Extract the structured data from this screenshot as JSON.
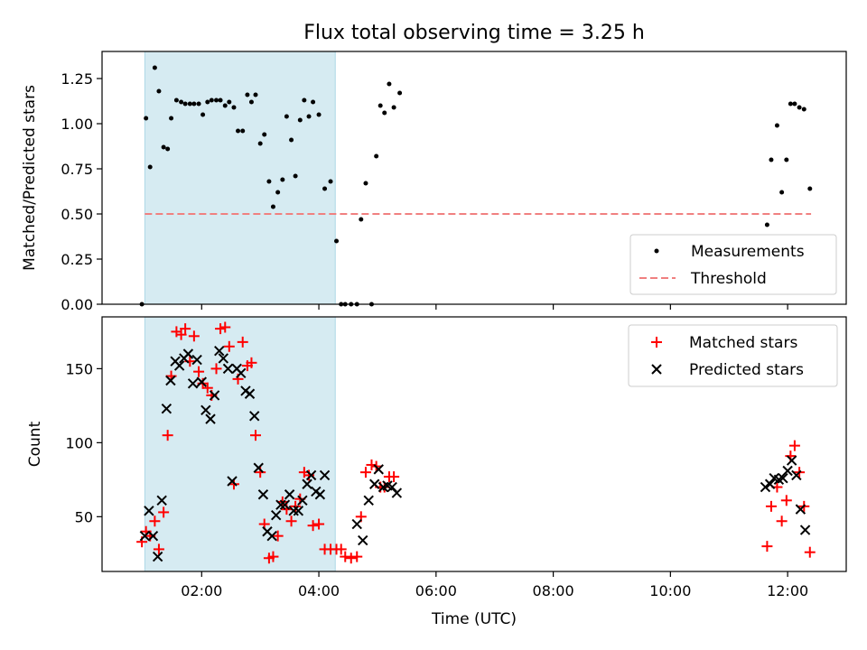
{
  "chart_data": {
    "type": "scatter",
    "title": "Flux total observing time = 3.25 h",
    "xlabel": "Time (UTC)",
    "x_unit": "hours UTC",
    "xlim": [
      0.3,
      13.0
    ],
    "x_ticks": [
      2,
      4,
      6,
      8,
      10,
      12
    ],
    "x_tick_labels": [
      "02:00",
      "04:00",
      "06:00",
      "08:00",
      "10:00",
      "12:00"
    ],
    "highlight_span": {
      "x": [
        1.03,
        4.28
      ],
      "color": "#add8e6"
    },
    "panels": [
      {
        "ylabel": "Matched/Predicted stars",
        "ylim": [
          0,
          1.4
        ],
        "y_ticks": [
          0.0,
          0.25,
          0.5,
          0.75,
          1.0,
          1.25
        ],
        "y_tick_labels": [
          "0.00",
          "0.25",
          "0.50",
          "0.75",
          "1.00",
          "1.25"
        ],
        "legend": "bottom-right",
        "series": [
          {
            "name": "Measurements",
            "marker": "dot",
            "color": "#000000",
            "points": [
              [
                0.98,
                0.0
              ],
              [
                1.05,
                1.03
              ],
              [
                1.12,
                0.76
              ],
              [
                1.2,
                1.31
              ],
              [
                1.27,
                1.18
              ],
              [
                1.35,
                0.87
              ],
              [
                1.42,
                0.86
              ],
              [
                1.48,
                1.03
              ],
              [
                1.57,
                1.13
              ],
              [
                1.65,
                1.12
              ],
              [
                1.72,
                1.11
              ],
              [
                1.8,
                1.11
              ],
              [
                1.87,
                1.11
              ],
              [
                1.95,
                1.11
              ],
              [
                2.02,
                1.05
              ],
              [
                2.1,
                1.12
              ],
              [
                2.17,
                1.13
              ],
              [
                2.25,
                1.13
              ],
              [
                2.32,
                1.13
              ],
              [
                2.4,
                1.1
              ],
              [
                2.47,
                1.12
              ],
              [
                2.55,
                1.09
              ],
              [
                2.62,
                0.96
              ],
              [
                2.7,
                0.96
              ],
              [
                2.78,
                1.16
              ],
              [
                2.85,
                1.12
              ],
              [
                2.92,
                1.16
              ],
              [
                3.0,
                0.89
              ],
              [
                3.07,
                0.94
              ],
              [
                3.15,
                0.68
              ],
              [
                3.22,
                0.54
              ],
              [
                3.3,
                0.62
              ],
              [
                3.38,
                0.69
              ],
              [
                3.45,
                1.04
              ],
              [
                3.53,
                0.91
              ],
              [
                3.6,
                0.71
              ],
              [
                3.68,
                1.02
              ],
              [
                3.75,
                1.13
              ],
              [
                3.83,
                1.04
              ],
              [
                3.9,
                1.12
              ],
              [
                4.0,
                1.05
              ],
              [
                4.1,
                0.64
              ],
              [
                4.2,
                0.68
              ],
              [
                4.3,
                0.35
              ],
              [
                4.38,
                0.0
              ],
              [
                4.45,
                0.0
              ],
              [
                4.55,
                0.0
              ],
              [
                4.65,
                0.0
              ],
              [
                4.72,
                0.47
              ],
              [
                4.8,
                0.67
              ],
              [
                4.9,
                0.0
              ],
              [
                4.98,
                0.82
              ],
              [
                5.05,
                1.1
              ],
              [
                5.12,
                1.06
              ],
              [
                5.2,
                1.22
              ],
              [
                5.28,
                1.09
              ],
              [
                5.38,
                1.17
              ],
              [
                11.65,
                0.44
              ],
              [
                11.72,
                0.8
              ],
              [
                11.82,
                0.99
              ],
              [
                11.9,
                0.62
              ],
              [
                11.98,
                0.8
              ],
              [
                12.05,
                1.11
              ],
              [
                12.12,
                1.11
              ],
              [
                12.2,
                1.09
              ],
              [
                12.28,
                1.08
              ],
              [
                12.38,
                0.64
              ]
            ]
          },
          {
            "name": "Threshold",
            "line": "dashed",
            "color": "#f08080",
            "points": [
              [
                1.03,
                0.5
              ],
              [
                12.4,
                0.5
              ]
            ]
          }
        ]
      },
      {
        "ylabel": "Count",
        "ylim": [
          13,
          185
        ],
        "y_ticks": [
          50,
          100,
          150
        ],
        "y_tick_labels": [
          "50",
          "100",
          "150"
        ],
        "legend": "top-right",
        "series": [
          {
            "name": "Matched stars",
            "marker": "plus",
            "color": "#ff0000",
            "points": [
              [
                0.98,
                33
              ],
              [
                1.05,
                40
              ],
              [
                1.12,
                37
              ],
              [
                1.2,
                47
              ],
              [
                1.27,
                28
              ],
              [
                1.35,
                53
              ],
              [
                1.42,
                105
              ],
              [
                1.48,
                145
              ],
              [
                1.57,
                175
              ],
              [
                1.65,
                173
              ],
              [
                1.72,
                177
              ],
              [
                1.8,
                155
              ],
              [
                1.87,
                172
              ],
              [
                1.95,
                148
              ],
              [
                2.02,
                140
              ],
              [
                2.1,
                137
              ],
              [
                2.17,
                132
              ],
              [
                2.25,
                150
              ],
              [
                2.32,
                177
              ],
              [
                2.4,
                178
              ],
              [
                2.47,
                165
              ],
              [
                2.55,
                72
              ],
              [
                2.62,
                143
              ],
              [
                2.7,
                168
              ],
              [
                2.78,
                152
              ],
              [
                2.85,
                154
              ],
              [
                2.92,
                105
              ],
              [
                3.0,
                80
              ],
              [
                3.07,
                45
              ],
              [
                3.15,
                22
              ],
              [
                3.22,
                23
              ],
              [
                3.3,
                37
              ],
              [
                3.38,
                60
              ],
              [
                3.45,
                55
              ],
              [
                3.53,
                47
              ],
              [
                3.6,
                57
              ],
              [
                3.68,
                62
              ],
              [
                3.75,
                80
              ],
              [
                3.83,
                78
              ],
              [
                3.9,
                44
              ],
              [
                4.0,
                45
              ],
              [
                4.1,
                28
              ],
              [
                4.2,
                28
              ],
              [
                4.3,
                28
              ],
              [
                4.38,
                28
              ],
              [
                4.45,
                23
              ],
              [
                4.55,
                22
              ],
              [
                4.65,
                23
              ],
              [
                4.72,
                50
              ],
              [
                4.8,
                80
              ],
              [
                4.9,
                85
              ],
              [
                4.98,
                84
              ],
              [
                5.05,
                70
              ],
              [
                5.12,
                70
              ],
              [
                5.2,
                77
              ],
              [
                5.28,
                77
              ],
              [
                11.65,
                30
              ],
              [
                11.72,
                57
              ],
              [
                11.82,
                70
              ],
              [
                11.9,
                47
              ],
              [
                11.98,
                61
              ],
              [
                12.05,
                91
              ],
              [
                12.12,
                98
              ],
              [
                12.2,
                80
              ],
              [
                12.28,
                57
              ],
              [
                12.38,
                26
              ]
            ]
          },
          {
            "name": "Predicted stars",
            "marker": "cross",
            "color": "#000000",
            "points": [
              [
                1.03,
                37
              ],
              [
                1.1,
                54
              ],
              [
                1.17,
                37
              ],
              [
                1.25,
                23
              ],
              [
                1.32,
                61
              ],
              [
                1.4,
                123
              ],
              [
                1.47,
                142
              ],
              [
                1.55,
                155
              ],
              [
                1.62,
                152
              ],
              [
                1.7,
                157
              ],
              [
                1.77,
                160
              ],
              [
                1.85,
                140
              ],
              [
                1.92,
                156
              ],
              [
                2.0,
                141
              ],
              [
                2.07,
                122
              ],
              [
                2.15,
                116
              ],
              [
                2.22,
                132
              ],
              [
                2.3,
                162
              ],
              [
                2.37,
                157
              ],
              [
                2.45,
                150
              ],
              [
                2.52,
                74
              ],
              [
                2.6,
                150
              ],
              [
                2.67,
                147
              ],
              [
                2.75,
                135
              ],
              [
                2.82,
                133
              ],
              [
                2.9,
                118
              ],
              [
                2.97,
                83
              ],
              [
                3.05,
                65
              ],
              [
                3.12,
                40
              ],
              [
                3.2,
                37
              ],
              [
                3.27,
                51
              ],
              [
                3.35,
                58
              ],
              [
                3.42,
                58
              ],
              [
                3.5,
                65
              ],
              [
                3.57,
                54
              ],
              [
                3.65,
                54
              ],
              [
                3.72,
                61
              ],
              [
                3.8,
                72
              ],
              [
                3.87,
                78
              ],
              [
                3.95,
                67
              ],
              [
                4.02,
                65
              ],
              [
                4.1,
                78
              ],
              [
                4.65,
                45
              ],
              [
                4.75,
                34
              ],
              [
                4.85,
                61
              ],
              [
                4.95,
                72
              ],
              [
                5.02,
                82
              ],
              [
                5.1,
                70
              ],
              [
                5.17,
                71
              ],
              [
                5.25,
                70
              ],
              [
                5.33,
                66
              ],
              [
                11.62,
                70
              ],
              [
                11.7,
                72
              ],
              [
                11.77,
                76
              ],
              [
                11.85,
                75
              ],
              [
                11.92,
                76
              ],
              [
                12.0,
                81
              ],
              [
                12.07,
                88
              ],
              [
                12.15,
                78
              ],
              [
                12.22,
                55
              ],
              [
                12.3,
                41
              ]
            ]
          }
        ]
      }
    ]
  }
}
